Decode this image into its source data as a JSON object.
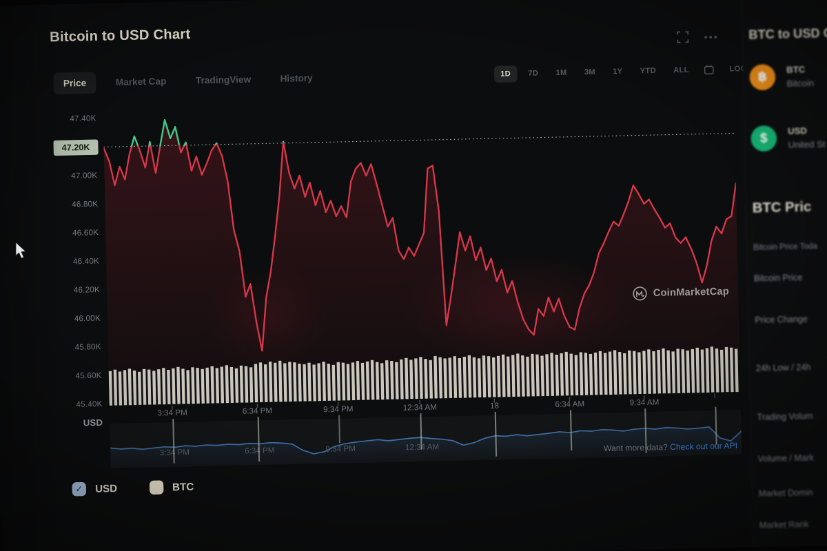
{
  "header": {
    "title": "Bitcoin to USD Chart"
  },
  "tabs": {
    "items": [
      "Price",
      "Market Cap",
      "TradingView",
      "History"
    ],
    "active": "Price"
  },
  "ranges": {
    "items": [
      "1D",
      "7D",
      "1M",
      "3M",
      "1Y",
      "YTD",
      "ALL"
    ],
    "active": "1D",
    "log_label": "LOG"
  },
  "axis": {
    "y_labels": [
      "47.40K",
      "47.00K",
      "46.80K",
      "46.60K",
      "46.40K",
      "46.20K",
      "46.00K",
      "45.80K",
      "45.60K",
      "45.40K"
    ],
    "open_badge": "47.20K",
    "currency_label": "USD",
    "x_labels": [
      "3:34 PM",
      "6:34 PM",
      "9:34 PM",
      "12:34 AM",
      "18",
      "6:34 AM",
      "9:34 AM"
    ]
  },
  "navigator": {
    "labels": [
      "3:34 PM",
      "6:34 PM",
      "9:34 PM",
      "12:34 AM"
    ],
    "promo_prefix": "Want more data?",
    "promo_link": "Check out our API"
  },
  "legend": {
    "items": [
      {
        "label": "USD",
        "checked": true
      },
      {
        "label": "BTC",
        "checked": false
      }
    ],
    "check_glyph": "✓"
  },
  "watermark": {
    "text": "CoinMarketCap"
  },
  "sidebar": {
    "converter_title": "BTC to USD Co",
    "coins": [
      {
        "symbol": "BTC",
        "name": "Bitcoin",
        "icon": "bitcoin-icon",
        "color": "#f7931a",
        "glyph": "฿"
      },
      {
        "symbol": "USD",
        "name": "United St",
        "icon": "dollar-icon",
        "color": "#16b877",
        "glyph": "$"
      }
    ],
    "stats_title": "BTC Pric",
    "stats_subtitle": "Bitcoin Price Toda",
    "rows": [
      "Bitcoin Price",
      "Price Change",
      "24h Low / 24h",
      "Trading Volum",
      "Volume / Mark",
      "Market Domin",
      "Market Rank"
    ]
  },
  "chart_data": {
    "type": "line",
    "title": "Bitcoin to USD Chart",
    "ylabel": "USD",
    "active_range": "1D",
    "ylim_k": [
      45.4,
      47.4
    ],
    "y_ticks_k": [
      47.4,
      47.2,
      47.0,
      46.8,
      46.6,
      46.4,
      46.2,
      46.0,
      45.8,
      45.6,
      45.4
    ],
    "x_tick_labels": [
      "3:34 PM",
      "6:34 PM",
      "9:34 PM",
      "12:34 AM",
      "18",
      "6:34 AM",
      "9:34 AM"
    ],
    "open_price_k": 47.2,
    "price_series_k": [
      47.19,
      47.1,
      46.93,
      47.06,
      46.97,
      47.15,
      47.27,
      47.17,
      47.05,
      47.23,
      47.01,
      47.2,
      47.38,
      47.25,
      47.33,
      47.15,
      47.22,
      47.02,
      47.12,
      46.99,
      47.07,
      47.16,
      47.21,
      47.12,
      46.94,
      46.6,
      46.45,
      46.13,
      46.22,
      45.95,
      45.75,
      46.12,
      46.3,
      46.55,
      46.83,
      47.21,
      46.99,
      46.88,
      46.97,
      46.82,
      46.92,
      46.76,
      46.86,
      46.71,
      46.79,
      46.68,
      46.75,
      46.67,
      46.92,
      47.01,
      47.05,
      46.96,
      47.04,
      46.9,
      46.75,
      46.6,
      46.66,
      46.43,
      46.37,
      46.45,
      46.39,
      46.47,
      46.55,
      47.0,
      47.02,
      46.7,
      45.9,
      46.1,
      46.32,
      46.55,
      46.42,
      46.52,
      46.35,
      46.44,
      46.28,
      46.36,
      46.2,
      46.28,
      46.12,
      46.2,
      46.05,
      45.93,
      45.86,
      45.82,
      46.0,
      45.95,
      46.08,
      45.98,
      46.07,
      45.95,
      45.87,
      45.85,
      46.0,
      46.1,
      46.16,
      46.25,
      46.38,
      46.45,
      46.53,
      46.6,
      46.57,
      46.65,
      46.74,
      46.85,
      46.79,
      46.72,
      46.75,
      46.68,
      46.62,
      46.55,
      46.58,
      46.48,
      46.44,
      46.48,
      46.4,
      46.3,
      46.16,
      46.28,
      46.45,
      46.55,
      46.5,
      46.6,
      46.62,
      46.85
    ],
    "volume_rel": [
      0.52,
      0.54,
      0.51,
      0.53,
      0.55,
      0.52,
      0.5,
      0.54,
      0.53,
      0.51,
      0.53,
      0.55,
      0.52,
      0.54,
      0.56,
      0.53,
      0.51,
      0.55,
      0.54,
      0.52,
      0.54,
      0.56,
      0.53,
      0.55,
      0.57,
      0.54,
      0.52,
      0.56,
      0.55,
      0.53,
      0.58,
      0.6,
      0.57,
      0.61,
      0.59,
      0.62,
      0.58,
      0.6,
      0.59,
      0.57,
      0.56,
      0.58,
      0.55,
      0.57,
      0.59,
      0.56,
      0.54,
      0.58,
      0.57,
      0.55,
      0.57,
      0.59,
      0.56,
      0.58,
      0.6,
      0.57,
      0.55,
      0.59,
      0.58,
      0.56,
      0.6,
      0.62,
      0.59,
      0.61,
      0.63,
      0.6,
      0.58,
      0.64,
      0.62,
      0.6,
      0.61,
      0.63,
      0.6,
      0.62,
      0.64,
      0.61,
      0.59,
      0.63,
      0.62,
      0.6,
      0.62,
      0.64,
      0.61,
      0.63,
      0.65,
      0.62,
      0.6,
      0.64,
      0.63,
      0.61,
      0.63,
      0.65,
      0.62,
      0.64,
      0.66,
      0.63,
      0.61,
      0.65,
      0.64,
      0.62,
      0.64,
      0.66,
      0.63,
      0.65,
      0.67,
      0.64,
      0.62,
      0.66,
      0.65,
      0.63,
      0.65,
      0.67,
      0.64,
      0.66,
      0.68,
      0.65,
      0.63,
      0.67,
      0.66,
      0.64,
      0.66,
      0.68,
      0.65,
      0.67,
      0.69,
      0.66,
      0.64,
      0.68,
      0.67,
      0.65
    ],
    "navigator_series_rel": [
      0.5,
      0.46,
      0.48,
      0.44,
      0.47,
      0.5,
      0.48,
      0.52,
      0.5,
      0.53,
      0.51,
      0.54,
      0.52,
      0.55,
      0.53,
      0.56,
      0.54,
      0.5,
      0.3,
      0.18,
      0.24,
      0.4,
      0.48,
      0.52,
      0.55,
      0.58,
      0.54,
      0.57,
      0.6,
      0.62,
      0.58,
      0.55,
      0.5,
      0.35,
      0.42,
      0.55,
      0.62,
      0.6,
      0.64,
      0.6,
      0.63,
      0.66,
      0.7,
      0.67,
      0.72,
      0.7,
      0.74,
      0.72,
      0.68,
      0.73,
      0.75,
      0.72,
      0.76,
      0.74,
      0.7,
      0.72,
      0.75,
      0.4,
      0.3,
      0.6
    ],
    "colors": {
      "line_up": "#3ecf8e",
      "line_down": "#d8374a",
      "volume": "#d9d7cc",
      "navigator_line": "#3e6fa6",
      "open_line": "#d8d8d2",
      "badge_bg": "#b2bfae",
      "link": "#3f86dd"
    },
    "legend_entries": [
      "USD",
      "BTC"
    ],
    "grid": false
  }
}
